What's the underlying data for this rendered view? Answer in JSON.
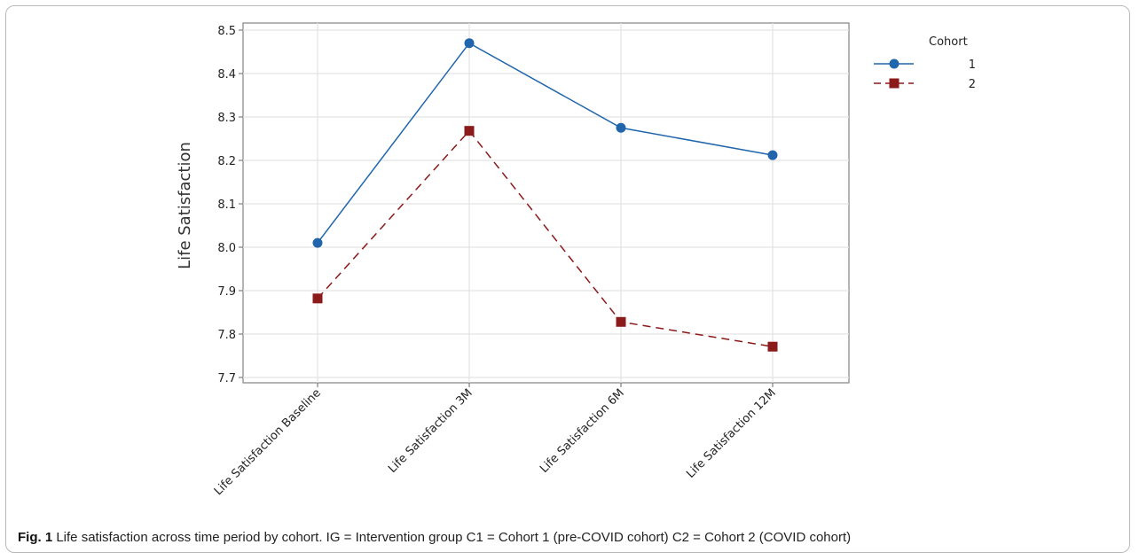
{
  "chart_data": {
    "type": "line",
    "title": "",
    "xlabel": "",
    "ylabel": "Life Satisfaction",
    "categories": [
      "Life Satisfaction Baseline",
      "Life Satisfaction 3M",
      "Life Satisfaction 6M",
      "Life Satisfaction 12M"
    ],
    "ylim": [
      7.7,
      8.5
    ],
    "yticks": [
      "7.7",
      "7.8",
      "7.9",
      "8.0",
      "8.1",
      "8.2",
      "8.3",
      "8.4",
      "8.5"
    ],
    "grid": true,
    "legend": {
      "title": "Cohort",
      "position": "top-right"
    },
    "series": [
      {
        "name": "1",
        "values": [
          8.01,
          8.47,
          8.275,
          8.212
        ],
        "color": "#2166ac",
        "marker": "circle",
        "line": "solid"
      },
      {
        "name": "2",
        "values": [
          7.882,
          8.268,
          7.828,
          7.771
        ],
        "color": "#8b1a1a",
        "marker": "square",
        "line": "dashed"
      }
    ]
  },
  "caption": {
    "label": "Fig. 1",
    "text": "Life satisfaction across time period by cohort. IG = Intervention group C1 = Cohort 1 (pre-COVID cohort) C2 = Cohort 2 (COVID cohort)"
  }
}
